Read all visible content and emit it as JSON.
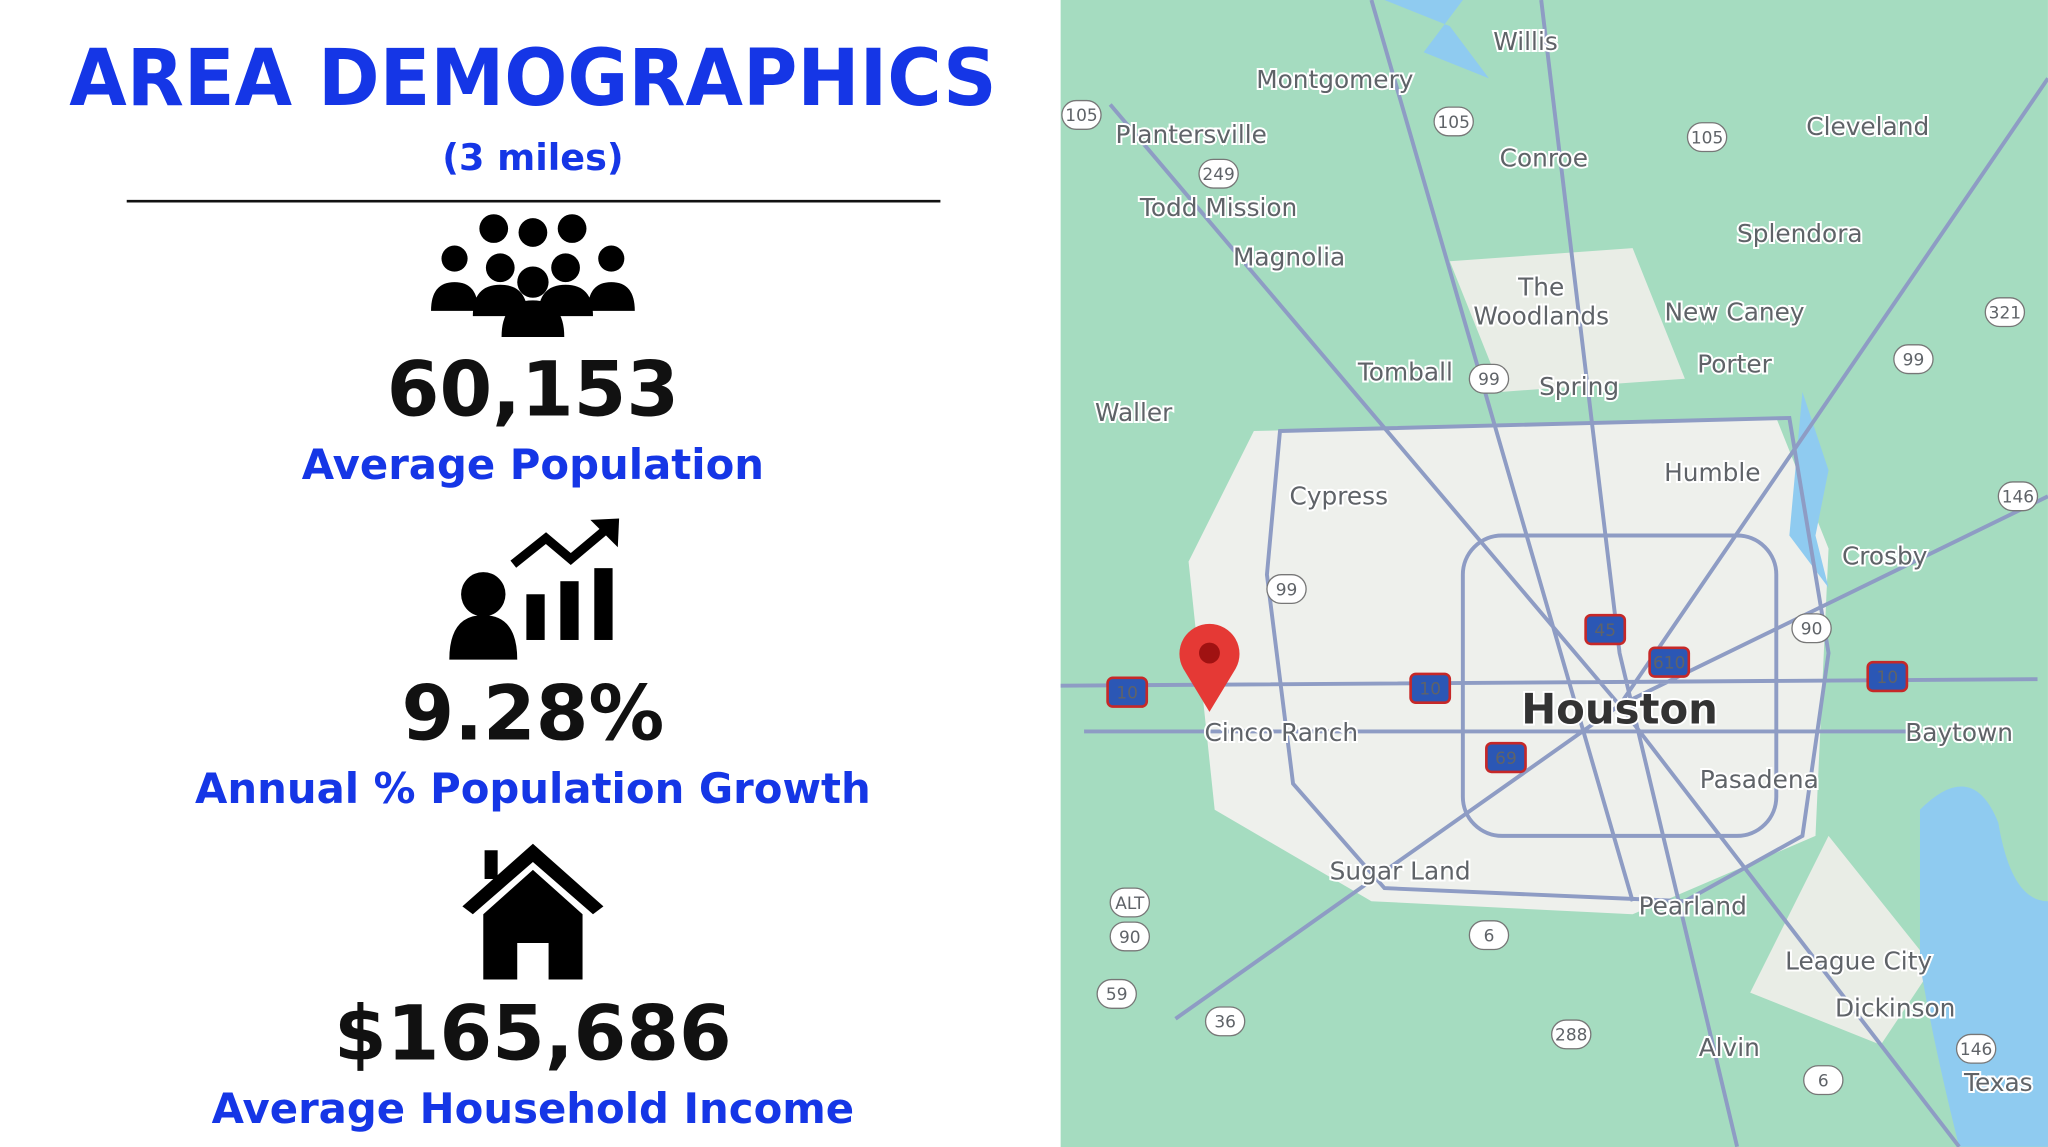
{
  "header": {
    "title": "AREA DEMOGRAPHICS",
    "subtitle": "(3 miles)"
  },
  "stats": [
    {
      "value": "60,153",
      "label": "Average Population"
    },
    {
      "value": "9.28%",
      "label": "Annual % Population Growth"
    },
    {
      "value": "$165,686",
      "label": "Average Household Income"
    }
  ],
  "map": {
    "labels": [
      "Willis",
      "Montgomery",
      "Plantersville",
      "Conroe",
      "Cleveland",
      "Todd Mission",
      "Magnolia",
      "Splendora",
      "The",
      "Woodlands",
      "New Caney",
      "Porter",
      "Tomball",
      "Spring",
      "Waller",
      "Cypress",
      "Humble",
      "Crosby",
      "Houston",
      "Cinco Ranch",
      "Baytown",
      "Pasadena",
      "Sugar Land",
      "Pearland",
      "League City",
      "Dickinson",
      "Alvin",
      "Texas"
    ],
    "shields": [
      "105",
      "105",
      "105",
      "249",
      "321",
      "99",
      "99",
      "99",
      "146",
      "146",
      "45",
      "610",
      "90",
      "90",
      "10",
      "10",
      "10",
      "69",
      "6",
      "6",
      "59",
      "36",
      "288",
      "ALT"
    ]
  }
}
